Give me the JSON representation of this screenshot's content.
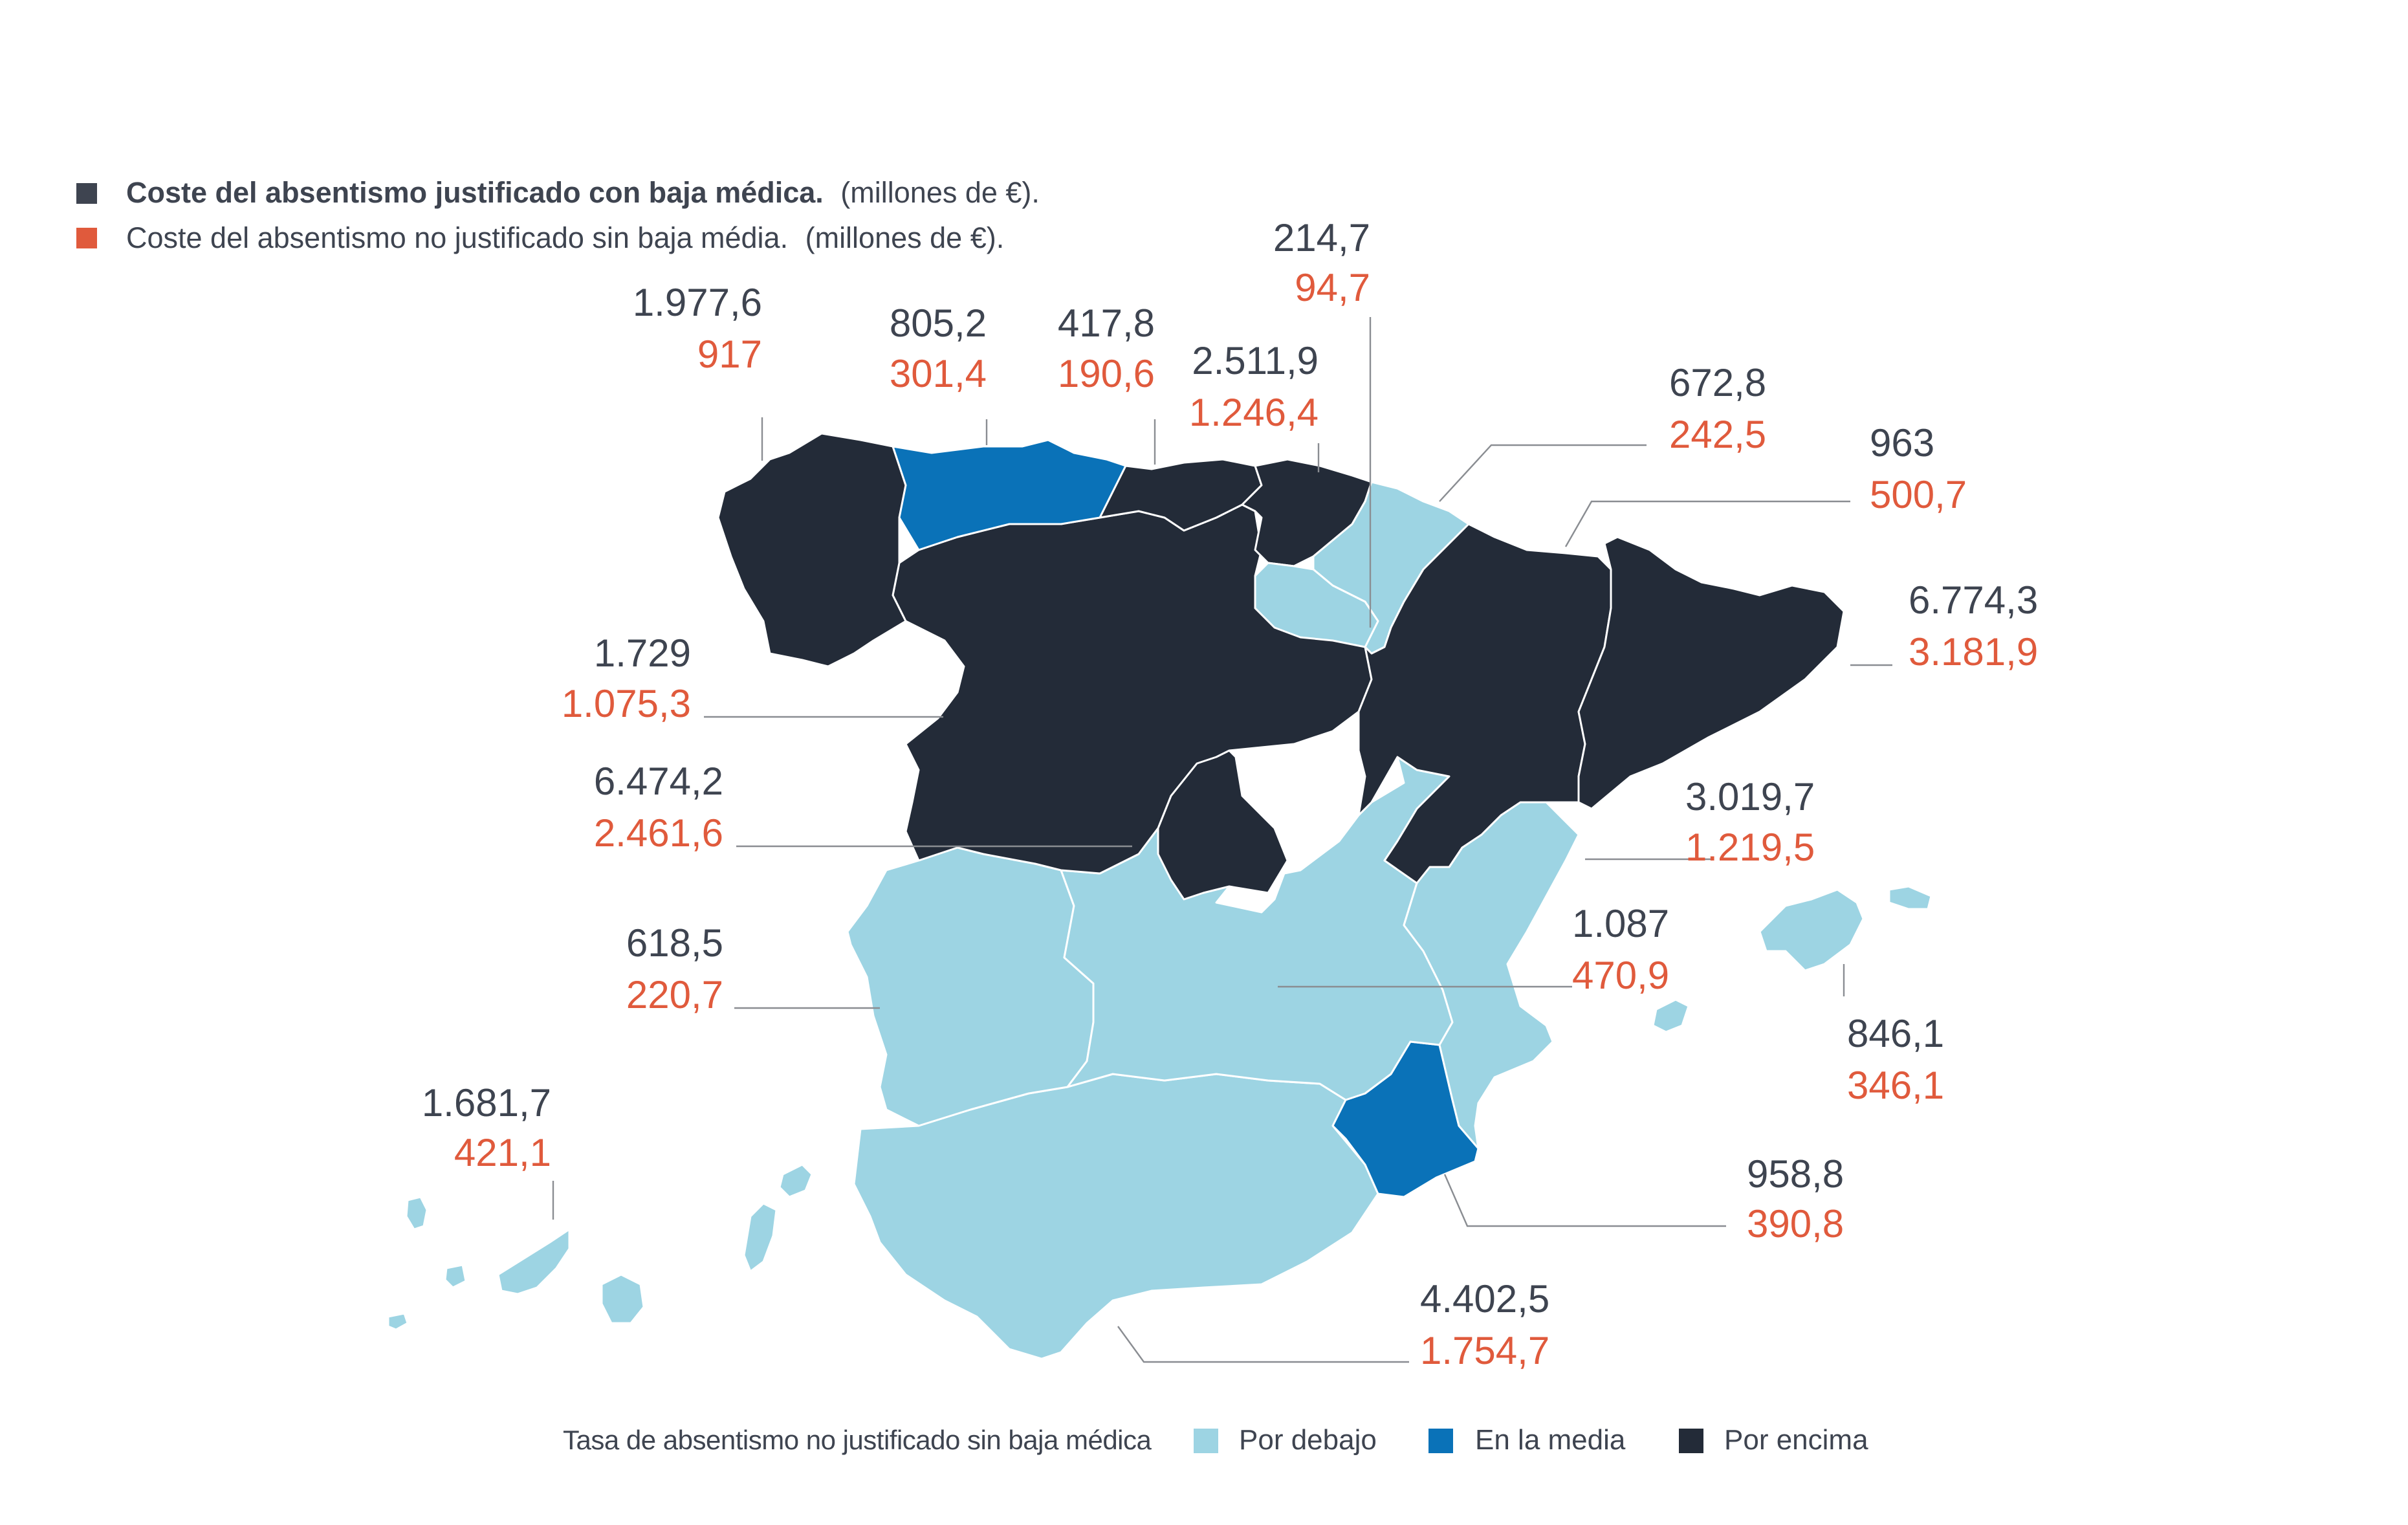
{
  "colors": {
    "justified": "#3e4450",
    "unjustified": "#e05a3c",
    "below": "#9dd4e3",
    "average": "#0a72b8",
    "above": "#232b38",
    "outline": "#ffffff",
    "leader": "#8a8d92"
  },
  "legend": {
    "justified": {
      "label": "Coste del absentismo justificado con baja médica.",
      "note": "(millones de €)."
    },
    "unjustified": {
      "label": "Coste del absentismo no justificado sin baja média.",
      "note": "(millones de €)."
    }
  },
  "category_legend": {
    "title": "Tasa de absentismo no justificado sin baja médica",
    "below": "Por debajo",
    "average": "En la media",
    "above": "Por encima"
  },
  "regions": [
    {
      "id": "galicia",
      "category": "above",
      "justified": "1.977,6",
      "unjustified": "917"
    },
    {
      "id": "asturias",
      "category": "average",
      "justified": "805,2",
      "unjustified": "301,4"
    },
    {
      "id": "cantabria",
      "category": "above",
      "justified": "417,8",
      "unjustified": "190,6"
    },
    {
      "id": "pais-vasco",
      "category": "above",
      "justified": "2.511,9",
      "unjustified": "1.246,4"
    },
    {
      "id": "la-rioja",
      "category": "below",
      "justified": "214,7",
      "unjustified": "94,7"
    },
    {
      "id": "navarra",
      "category": "below",
      "justified": "672,8",
      "unjustified": "242,5"
    },
    {
      "id": "aragon",
      "category": "above",
      "justified": "963",
      "unjustified": "500,7"
    },
    {
      "id": "cataluna",
      "category": "above",
      "justified": "6.774,3",
      "unjustified": "3.181,9"
    },
    {
      "id": "castilla-y-leon",
      "category": "above",
      "justified": "1.729",
      "unjustified": "1.075,3"
    },
    {
      "id": "madrid",
      "category": "above",
      "justified": "6.474,2",
      "unjustified": "2.461,6"
    },
    {
      "id": "comunidad-valenciana",
      "category": "below",
      "justified": "3.019,7",
      "unjustified": "1.219,5"
    },
    {
      "id": "castilla-la-mancha",
      "category": "below",
      "justified": "1.087",
      "unjustified": "470,9"
    },
    {
      "id": "extremadura",
      "category": "below",
      "justified": "618,5",
      "unjustified": "220,7"
    },
    {
      "id": "baleares",
      "category": "below",
      "justified": "846,1",
      "unjustified": "346,1"
    },
    {
      "id": "canarias",
      "category": "below",
      "justified": "1.681,7",
      "unjustified": "421,1"
    },
    {
      "id": "murcia",
      "category": "average",
      "justified": "958,8",
      "unjustified": "390,8"
    },
    {
      "id": "andalucia",
      "category": "below",
      "justified": "4.402,5",
      "unjustified": "1.754,7"
    }
  ]
}
